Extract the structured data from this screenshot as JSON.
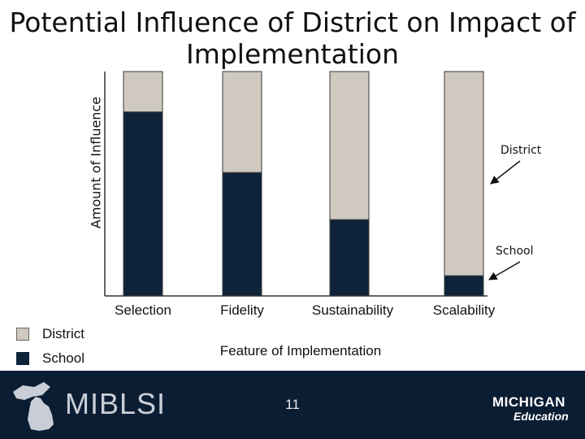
{
  "chart_data": {
    "type": "bar",
    "stacked": true,
    "title": "Potential Influence of District on Impact of Implementation",
    "xlabel": "Feature of Implementation",
    "ylabel": "Amount of Influence",
    "categories": [
      "Selection",
      "Fidelity",
      "Sustainability",
      "Scalability"
    ],
    "series": [
      {
        "name": "School",
        "color": "#0e2339",
        "values": [
          82,
          55,
          34,
          9
        ]
      },
      {
        "name": "District",
        "color": "#cfc9bf",
        "values": [
          18,
          45,
          66,
          91
        ]
      }
    ],
    "ylim": [
      0,
      100
    ],
    "grid": false,
    "legend_position": "bottom-left",
    "annotations": [
      {
        "text": "District",
        "target": "district-portion"
      },
      {
        "text": "School",
        "target": "school-portion"
      }
    ]
  },
  "footer": {
    "brand": "MIBLSI",
    "page_number": "11",
    "logo_top": "MICHIGAN",
    "logo_bottom": "Education"
  },
  "colors": {
    "footer_bg": "#0b1d33"
  }
}
